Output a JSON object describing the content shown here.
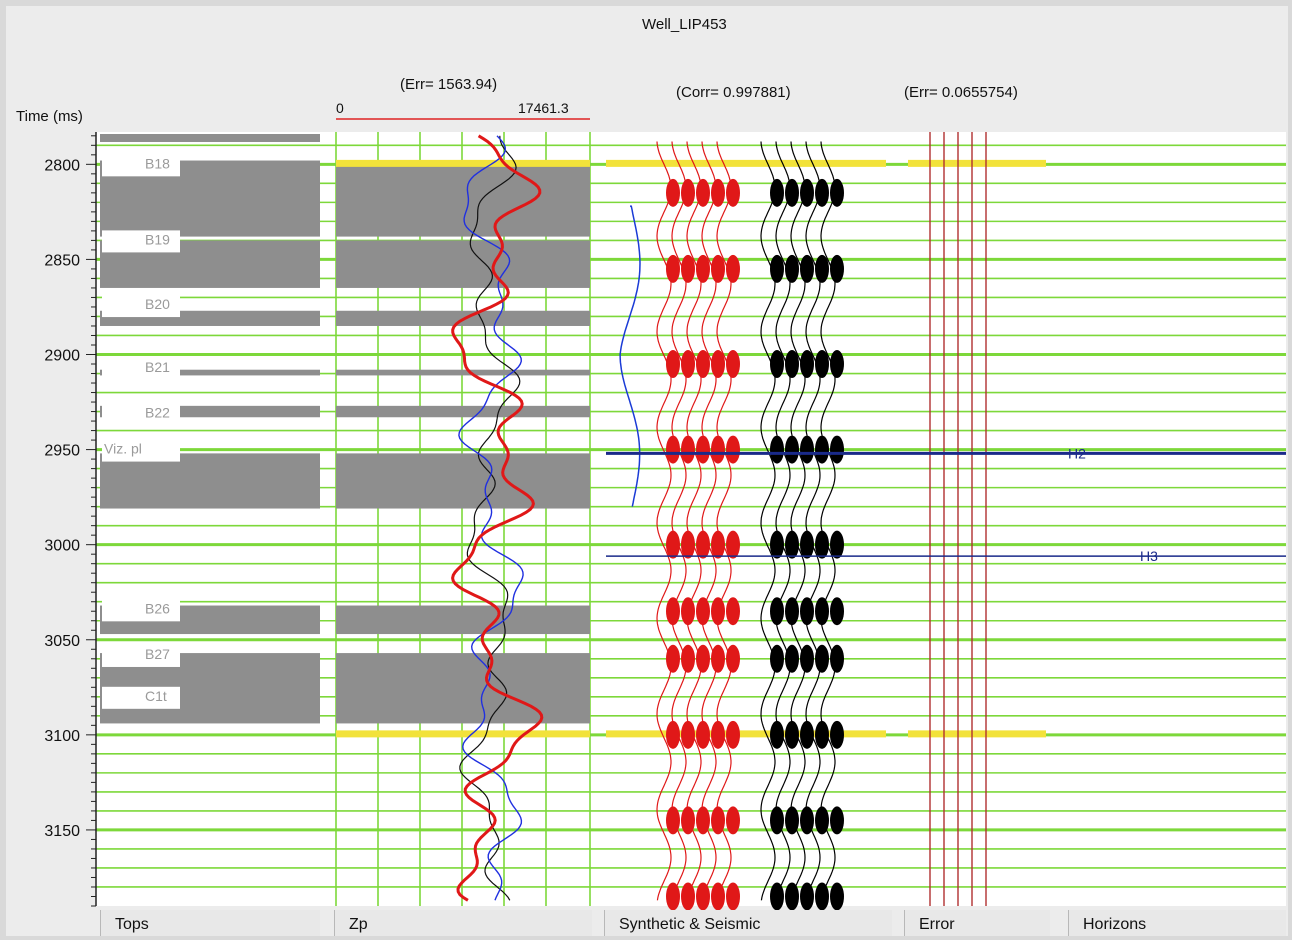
{
  "window": {
    "title": "Well_LIP453"
  },
  "header": {
    "time_label": "Time (ms)",
    "zp_err": "(Err= 1563.94)",
    "zp_range_min": "0",
    "zp_range_max": "17461.3",
    "corr": "(Corr= 0.997881)",
    "err": "(Err= 0.0655754)"
  },
  "tracks": [
    "Tops",
    "Zp",
    "Synthetic & Seismic",
    "Error",
    "Horizons"
  ],
  "colors": {
    "grid": "#7dd83a",
    "tops_fill": "#8e8e8e",
    "marker": "#f2e23a",
    "synthetic": "#e01818",
    "seismic": "#000000",
    "wavelet": "#1a3bd6",
    "horizon": "#1a2a8a",
    "error_line": "#b03030",
    "zp_log": "#e01818",
    "zp_model": "#2030e0"
  },
  "chart_data": {
    "type": "well-tie",
    "y_axis": {
      "label": "Time (ms)",
      "min": 2783,
      "max": 3190,
      "ticks": [
        2800,
        2850,
        2900,
        2950,
        3000,
        3050,
        3100,
        3150
      ]
    },
    "zp_track": {
      "label": "Zp",
      "range": [
        0,
        17461.3
      ],
      "err": 1563.94
    },
    "tops": [
      {
        "name": "B18",
        "time": 2800
      },
      {
        "name": "B19",
        "time": 2840
      },
      {
        "name": "B20",
        "time": 2874
      },
      {
        "name": "B21",
        "time": 2907
      },
      {
        "name": "B22",
        "time": 2931
      },
      {
        "name": "Viz. pl",
        "time": 2950
      },
      {
        "name": "B26",
        "time": 3034
      },
      {
        "name": "B27",
        "time": 3058
      },
      {
        "name": "C1t",
        "time": 3080
      }
    ],
    "correlation": 0.997881,
    "error": 0.0655754,
    "horizons": [
      {
        "name": "H2",
        "time": 2952
      },
      {
        "name": "H3",
        "time": 3006
      }
    ]
  }
}
